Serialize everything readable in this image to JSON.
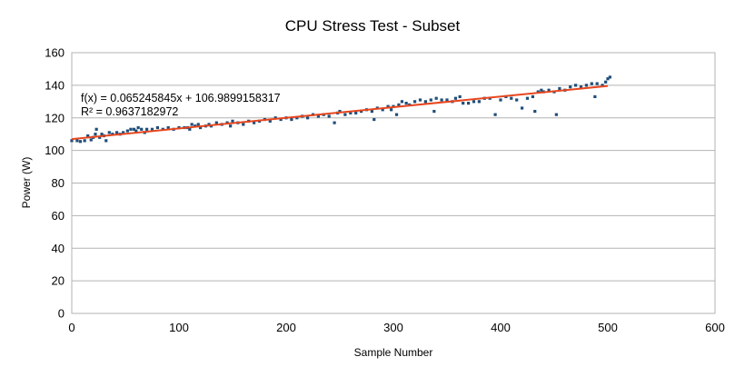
{
  "chart_data": {
    "type": "scatter",
    "title": "CPU Stress Test - Subset",
    "xlabel": "Sample Number",
    "ylabel": "Power (W)",
    "xlim": [
      0,
      600
    ],
    "ylim": [
      0,
      160
    ],
    "xticks": [
      "0",
      "100",
      "200",
      "300",
      "400",
      "500",
      "600"
    ],
    "yticks": [
      "0",
      "20",
      "40",
      "60",
      "80",
      "100",
      "120",
      "140",
      "160"
    ],
    "grid": "horizontal",
    "legend": "none",
    "series": [
      {
        "color": "#1f4e79",
        "points": [
          [
            0,
            106
          ],
          [
            5,
            106
          ],
          [
            8,
            105.5
          ],
          [
            12,
            106
          ],
          [
            15,
            109
          ],
          [
            18,
            106.5
          ],
          [
            20,
            108
          ],
          [
            22,
            110
          ],
          [
            23,
            113
          ],
          [
            26,
            108
          ],
          [
            28,
            110
          ],
          [
            30,
            109
          ],
          [
            32,
            106
          ],
          [
            35,
            111
          ],
          [
            38,
            110
          ],
          [
            42,
            111
          ],
          [
            45,
            110
          ],
          [
            48,
            111
          ],
          [
            52,
            112
          ],
          [
            55,
            113
          ],
          [
            58,
            113
          ],
          [
            60,
            112
          ],
          [
            62,
            114
          ],
          [
            65,
            113
          ],
          [
            68,
            111
          ],
          [
            70,
            113
          ],
          [
            75,
            113
          ],
          [
            80,
            114
          ],
          [
            85,
            113
          ],
          [
            90,
            114
          ],
          [
            95,
            113
          ],
          [
            100,
            114
          ],
          [
            105,
            114
          ],
          [
            108,
            114
          ],
          [
            110,
            113
          ],
          [
            112,
            116
          ],
          [
            115,
            115
          ],
          [
            118,
            116
          ],
          [
            120,
            114
          ],
          [
            125,
            115
          ],
          [
            128,
            116
          ],
          [
            130,
            115
          ],
          [
            135,
            117
          ],
          [
            140,
            116
          ],
          [
            145,
            117
          ],
          [
            148,
            115
          ],
          [
            150,
            118
          ],
          [
            155,
            117
          ],
          [
            160,
            116
          ],
          [
            165,
            118
          ],
          [
            170,
            117
          ],
          [
            175,
            118
          ],
          [
            180,
            119
          ],
          [
            185,
            118
          ],
          [
            190,
            120
          ],
          [
            195,
            119
          ],
          [
            200,
            120
          ],
          [
            205,
            119
          ],
          [
            210,
            120
          ],
          [
            215,
            121
          ],
          [
            220,
            120
          ],
          [
            225,
            122
          ],
          [
            230,
            121
          ],
          [
            235,
            122
          ],
          [
            240,
            121
          ],
          [
            245,
            117
          ],
          [
            248,
            123
          ],
          [
            250,
            124
          ],
          [
            255,
            122
          ],
          [
            260,
            123
          ],
          [
            265,
            123
          ],
          [
            270,
            124
          ],
          [
            275,
            125
          ],
          [
            280,
            124
          ],
          [
            282,
            119
          ],
          [
            285,
            126
          ],
          [
            290,
            125
          ],
          [
            295,
            127
          ],
          [
            298,
            125
          ],
          [
            300,
            127
          ],
          [
            303,
            122
          ],
          [
            305,
            128
          ],
          [
            308,
            130
          ],
          [
            312,
            129
          ],
          [
            315,
            128
          ],
          [
            320,
            130
          ],
          [
            325,
            131
          ],
          [
            330,
            130
          ],
          [
            335,
            131
          ],
          [
            338,
            124
          ],
          [
            340,
            132
          ],
          [
            345,
            131
          ],
          [
            350,
            131
          ],
          [
            355,
            130
          ],
          [
            358,
            132
          ],
          [
            362,
            133
          ],
          [
            365,
            129
          ],
          [
            370,
            129
          ],
          [
            375,
            130
          ],
          [
            380,
            130
          ],
          [
            385,
            132
          ],
          [
            390,
            132
          ],
          [
            395,
            122
          ],
          [
            400,
            131
          ],
          [
            405,
            133
          ],
          [
            410,
            132
          ],
          [
            415,
            131
          ],
          [
            420,
            126
          ],
          [
            425,
            132
          ],
          [
            430,
            133
          ],
          [
            432,
            124
          ],
          [
            435,
            136
          ],
          [
            438,
            137
          ],
          [
            440,
            136
          ],
          [
            445,
            137
          ],
          [
            450,
            136
          ],
          [
            452,
            122
          ],
          [
            455,
            138
          ],
          [
            460,
            137
          ],
          [
            465,
            139
          ],
          [
            470,
            140
          ],
          [
            475,
            139
          ],
          [
            480,
            140
          ],
          [
            485,
            141
          ],
          [
            488,
            133
          ],
          [
            490,
            141
          ],
          [
            495,
            140
          ],
          [
            498,
            142
          ],
          [
            500,
            144
          ],
          [
            502,
            145
          ]
        ]
      }
    ],
    "trendline": {
      "type": "linear",
      "slope": 0.065245845,
      "intercept": 106.9899158317,
      "x_range": [
        0,
        500
      ],
      "color": "#e8461e",
      "equation_label": "f(x) = 0.065245845x + 106.9899158317",
      "r2_label": "R² = 0.9637182972"
    }
  }
}
